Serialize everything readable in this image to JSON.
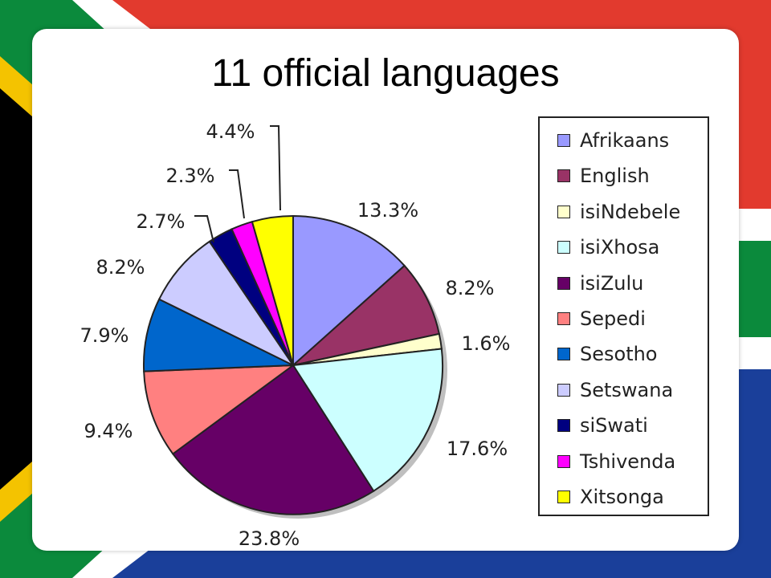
{
  "slide": {
    "title": "11 official languages"
  },
  "flag_colors": {
    "red": "#e23a2e",
    "blue": "#1a3f9a",
    "green": "#0b8a3c",
    "yellow": "#f4c300",
    "black": "#000000",
    "white": "#ffffff"
  },
  "chart_data": {
    "type": "pie",
    "title": "",
    "legend_position": "right",
    "slices": [
      {
        "label": "Afrikaans",
        "value": 13.3,
        "value_label": "13.3%",
        "color": "#9999ff"
      },
      {
        "label": "English",
        "value": 8.2,
        "value_label": "8.2%",
        "color": "#993366"
      },
      {
        "label": "isiNdebele",
        "value": 1.6,
        "value_label": "1.6%",
        "color": "#ffffcc"
      },
      {
        "label": "isiXhosa",
        "value": 17.6,
        "value_label": "17.6%",
        "color": "#ccffff"
      },
      {
        "label": "isiZulu",
        "value": 23.8,
        "value_label": "23.8%",
        "color": "#660066"
      },
      {
        "label": "Sepedi",
        "value": 9.4,
        "value_label": "9.4%",
        "color": "#ff8080"
      },
      {
        "label": "Sesotho",
        "value": 7.9,
        "value_label": "7.9%",
        "color": "#0066cc"
      },
      {
        "label": "Setswana",
        "value": 8.2,
        "value_label": "8.2%",
        "color": "#ccccff"
      },
      {
        "label": "siSwati",
        "value": 2.7,
        "value_label": "2.7%",
        "color": "#000080"
      },
      {
        "label": "Tshivenda",
        "value": 2.3,
        "value_label": "2.3%",
        "color": "#ff00ff"
      },
      {
        "label": "Xitsonga",
        "value": 4.4,
        "value_label": "4.4%",
        "color": "#ffff00"
      }
    ]
  }
}
